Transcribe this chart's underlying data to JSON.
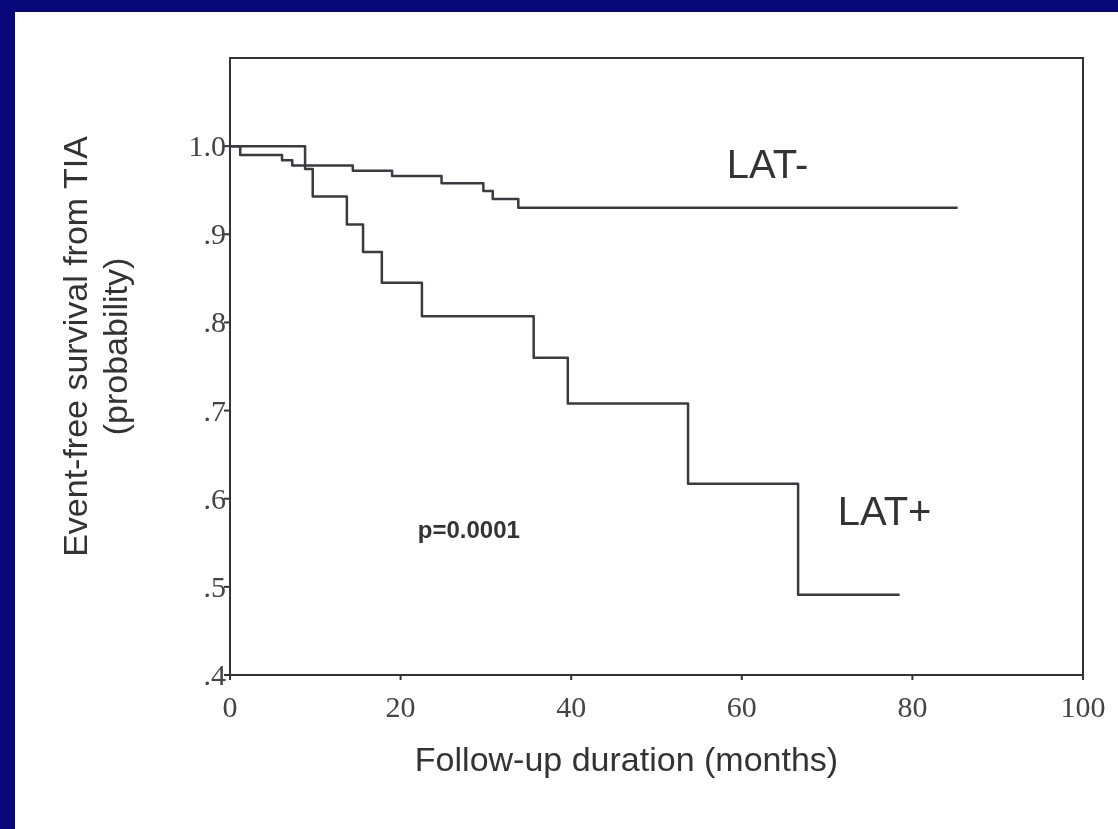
{
  "chart_data": {
    "type": "step",
    "xlabel": "Follow-up duration (months)",
    "ylabel": "Event-free survival from TIA\n(probability)",
    "xlim": [
      0,
      100
    ],
    "xticks": [
      0,
      20,
      40,
      60,
      80,
      100
    ],
    "ylim": [
      0.4,
      1.1
    ],
    "yticks": [
      {
        "value": 0.4,
        "label": ".4"
      },
      {
        "value": 0.5,
        "label": ".5"
      },
      {
        "value": 0.6,
        "label": ".6"
      },
      {
        "value": 0.7,
        "label": ".7"
      },
      {
        "value": 0.8,
        "label": ".8"
      },
      {
        "value": 0.9,
        "label": ".9"
      },
      {
        "value": 1.0,
        "label": "1.0"
      }
    ],
    "series": [
      {
        "name": "LAT-",
        "color": "#3a3a42",
        "x": [
          0,
          1.2,
          6.1,
          7.3,
          14.4,
          19,
          24.8,
          29.7,
          30.8,
          33.8,
          85.3
        ],
        "values": [
          1.0,
          0.99,
          0.984,
          0.978,
          0.972,
          0.966,
          0.958,
          0.949,
          0.94,
          0.93,
          0.93
        ]
      },
      {
        "name": "LAT+",
        "color": "#3a3a42",
        "x": [
          0,
          8.8,
          9.7,
          13.7,
          15.6,
          17.8,
          22.5,
          35.6,
          39.6,
          53.7,
          66.6,
          78.5
        ],
        "values": [
          1.0,
          0.974,
          0.943,
          0.911,
          0.88,
          0.845,
          0.807,
          0.76,
          0.708,
          0.617,
          0.491,
          0.491
        ]
      }
    ],
    "annotations": [
      "p=0.0001"
    ]
  }
}
